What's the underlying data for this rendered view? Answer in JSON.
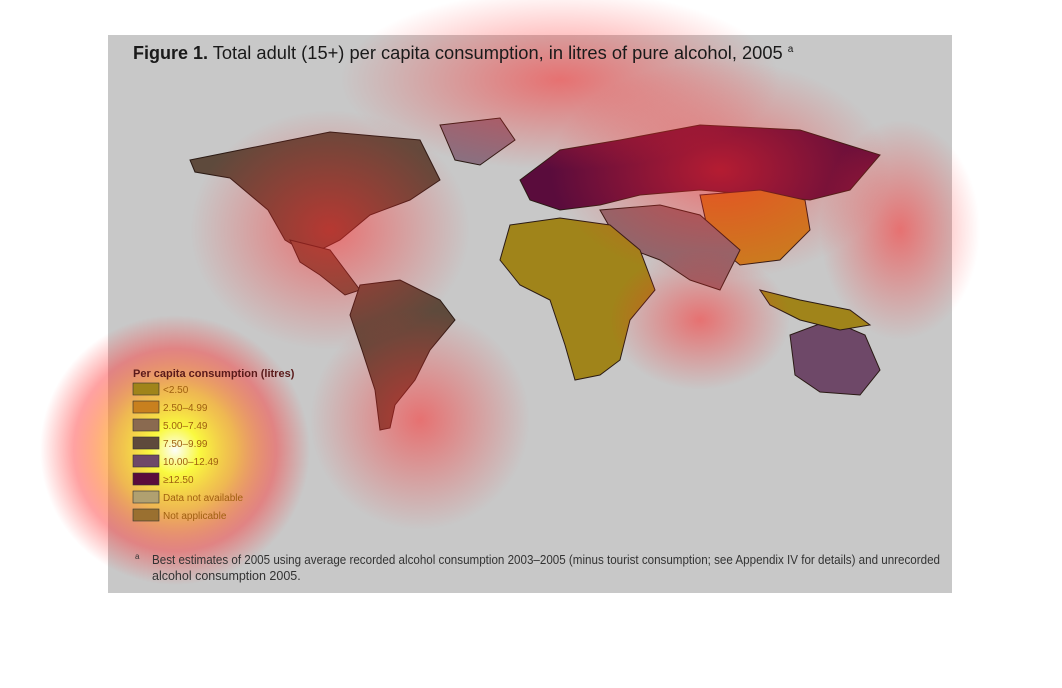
{
  "figure": {
    "label": "Figure 1.",
    "title": "Total adult (15+) per capita consumption, in litres of pure alcohol, 2005",
    "title_note": "a"
  },
  "legend": {
    "title": "Per capita consumption (litres)",
    "items": [
      {
        "label": "<2.50",
        "color": "#a0841a"
      },
      {
        "label": "2.50–4.99",
        "color": "#c8801e"
      },
      {
        "label": "5.00–7.49",
        "color": "#8a6a50"
      },
      {
        "label": "7.50–9.99",
        "color": "#5e4a3c"
      },
      {
        "label": "10.00–12.49",
        "color": "#6e4868"
      },
      {
        "label": "≥12.50",
        "color": "#5a0c3c"
      },
      {
        "label": "Data not available",
        "color": "#b0a070"
      },
      {
        "label": "Not applicable",
        "color": "#9a7030"
      }
    ]
  },
  "footnote": {
    "marker": "a",
    "lines": [
      "Best estimates of 2005 using average recorded alcohol consumption 2003–2005 (minus tourist consumption; see Appendix IV for details) and unrecorded",
      "alcohol consumption 2005."
    ]
  }
}
